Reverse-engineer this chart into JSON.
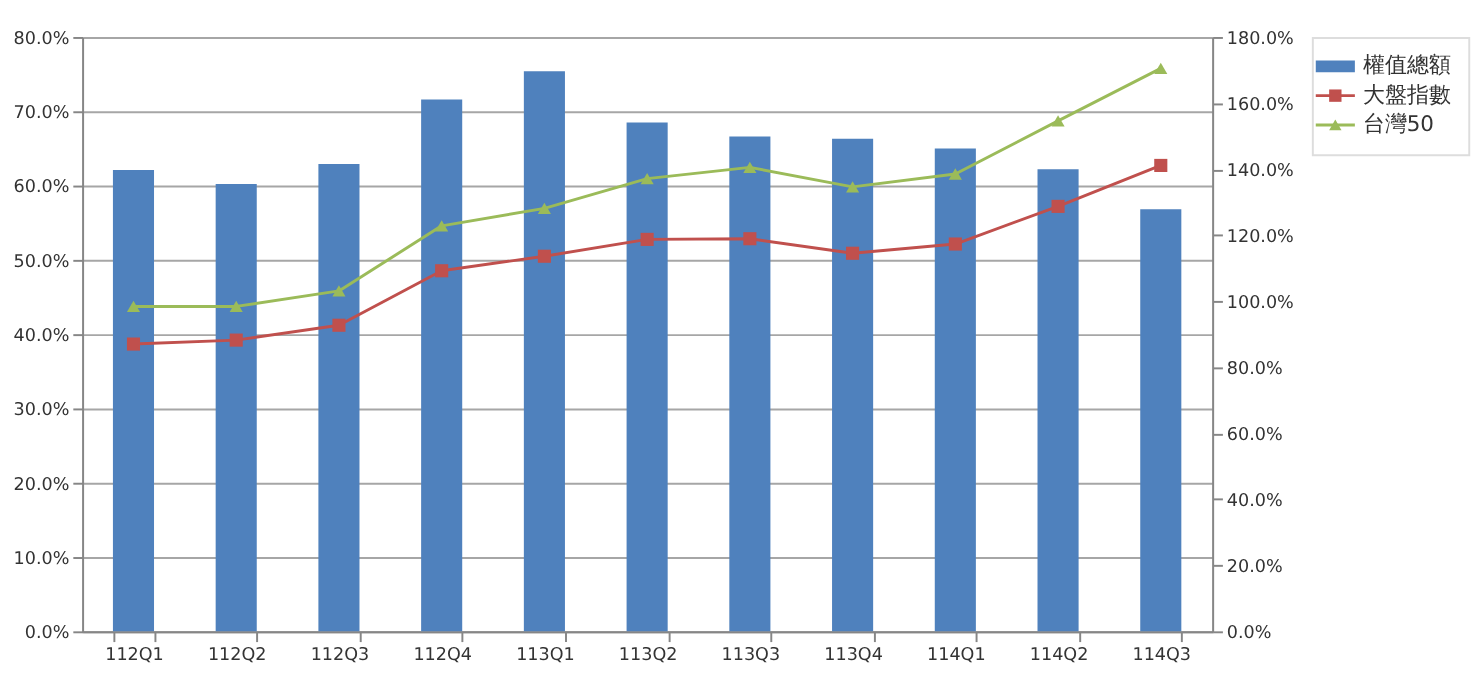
{
  "chart_data": {
    "type": "bar",
    "categories": [
      "112Q1",
      "112Q2",
      "112Q3",
      "112Q4",
      "113Q1",
      "113Q2",
      "113Q3",
      "113Q4",
      "114Q1",
      "114Q2",
      "114Q3"
    ],
    "series": [
      {
        "name": "權值總額",
        "color": "#4f81bd",
        "values": [
          62.1,
          60.2,
          62.9,
          71.6,
          75.4,
          68.5,
          66.6,
          66.3,
          65.0,
          62.2,
          56.8
        ]
      },
      {
        "name": "大盤指數",
        "type": "line",
        "axis": "y2",
        "marker": "square",
        "color": "#c0504d",
        "values": [
          87.0,
          88.2,
          92.7,
          109.2,
          113.6,
          118.7,
          118.9,
          114.5,
          117.3,
          128.7,
          141.1
        ]
      },
      {
        "name": "台灣50",
        "type": "line",
        "axis": "y2",
        "marker": "triangle",
        "color": "#9bbb59",
        "values": [
          98.4,
          98.4,
          103.1,
          122.8,
          128.1,
          137.1,
          140.5,
          134.6,
          138.5,
          154.6,
          170.5
        ]
      }
    ],
    "ylim": [
      0,
      80
    ],
    "yticks": [
      {
        "value": 0,
        "label": "0.0%"
      },
      {
        "value": 10,
        "label": "10.0%"
      },
      {
        "value": 20,
        "label": "20.0%"
      },
      {
        "value": 30,
        "label": "30.0%"
      },
      {
        "value": 40,
        "label": "40.0%"
      },
      {
        "value": 50,
        "label": "50.0%"
      },
      {
        "value": 60,
        "label": "60.0%"
      },
      {
        "value": 70,
        "label": "70.0%"
      },
      {
        "value": 80,
        "label": "80.0%"
      }
    ],
    "y2lim": [
      0,
      180
    ],
    "y2ticks": [
      {
        "value": 0,
        "label": "0.0%"
      },
      {
        "value": 20,
        "label": "20.0%"
      },
      {
        "value": 40,
        "label": "40.0%"
      },
      {
        "value": 60,
        "label": "60.0%"
      },
      {
        "value": 80,
        "label": "80.0%"
      },
      {
        "value": 100,
        "label": "100.0%"
      },
      {
        "value": 120,
        "label": "120.0%"
      },
      {
        "value": 140,
        "label": "140.0%"
      },
      {
        "value": 160,
        "label": "160.0%"
      },
      {
        "value": 180,
        "label": "180.0%"
      }
    ],
    "grid": "y",
    "legend": "right",
    "line_style": "solid"
  }
}
